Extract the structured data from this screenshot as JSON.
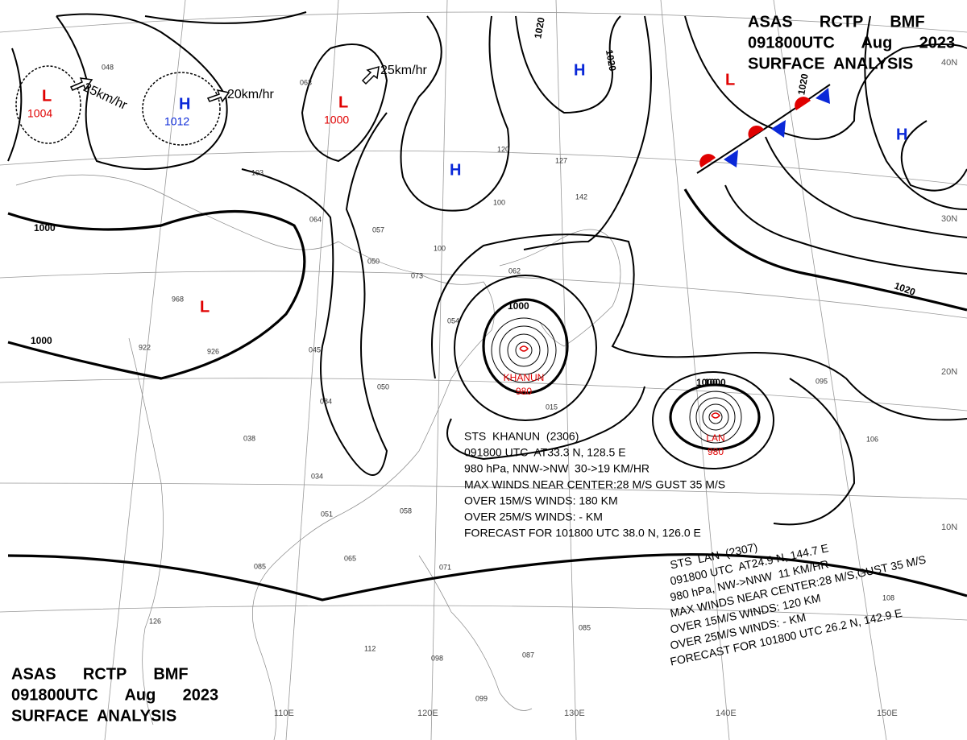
{
  "header_top": {
    "lines": [
      "ASAS      RCTP      BMF",
      "091800UTC      Aug      2023",
      "SURFACE  ANALYSIS"
    ]
  },
  "header_bottom": {
    "lines": [
      "ASAS      RCTP      BMF",
      "091800UTC      Aug      2023",
      "SURFACE  ANALYSIS"
    ]
  },
  "latitude_labels": [
    "40N",
    "30N",
    "20N",
    "10N"
  ],
  "longitude_labels": [
    "110E",
    "120E",
    "130E",
    "140E",
    "150E"
  ],
  "isobar_labels": [
    "1000",
    "1000",
    "1000",
    "1020",
    "1020",
    "1020",
    "1020",
    "1000",
    "1000"
  ],
  "pressure_centers": [
    {
      "symbol": "L",
      "value": "1004"
    },
    {
      "symbol": "H",
      "value": "1012"
    },
    {
      "symbol": "L",
      "value": "1000"
    },
    {
      "symbol": "L"
    },
    {
      "symbol": "H"
    },
    {
      "symbol": "H"
    },
    {
      "symbol": "L"
    },
    {
      "symbol": "H"
    }
  ],
  "motion_labels": [
    "25km/hr",
    "20km/hr",
    "25km/hr"
  ],
  "storms": [
    {
      "name": "KHANUN",
      "pressure": "980",
      "info": [
        "STS  KHANUN  (2306)",
        "091800 UTC  AT33.3 N, 128.5 E",
        "980 hPa, NNW->NW  30->19 KM/HR",
        "MAX WINDS NEAR CENTER:28 M/S GUST 35 M/S",
        "OVER 15M/S WINDS: 180 KM",
        "OVER 25M/S WINDS: - KM",
        "FORECAST FOR 101800 UTC 38.0 N, 126.0 E"
      ]
    },
    {
      "name": "LAN",
      "pressure": "980",
      "info": [
        "STS  LAN  (2307)",
        "091800 UTC  AT24.9 N, 144.7 E",
        "980 hPa, NW->NNW  11 KM/HR",
        "MAX WINDS NEAR CENTER:28 M/S,GUST 35 M/S",
        "OVER 15M/S WINDS: 120 KM",
        "OVER 25M/S WINDS: - KM",
        "FORECAST FOR 101800 UTC 26.2 N, 142.9 E"
      ]
    }
  ],
  "station_values": [
    "048",
    "063",
    "103",
    "064",
    "057",
    "050",
    "073",
    "100",
    "062",
    "120",
    "127",
    "142",
    "100",
    "968",
    "922",
    "926",
    "045",
    "050",
    "084",
    "038",
    "034",
    "051",
    "058",
    "065",
    "085",
    "126",
    "112",
    "098",
    "071",
    "087",
    "099",
    "085",
    "108",
    "106",
    "095",
    "015",
    "054"
  ]
}
